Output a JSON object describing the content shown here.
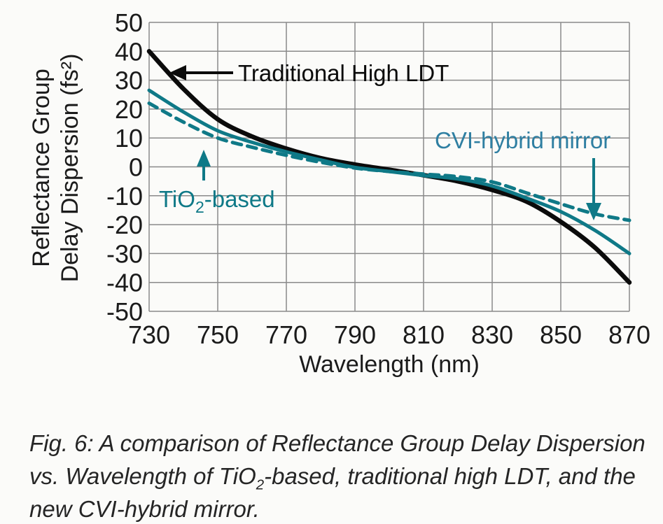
{
  "chart_data": {
    "type": "line",
    "title": "",
    "xlabel": "Wavelength (nm)",
    "ylabel": "Reflectance Group Delay Dispersion (fs²)",
    "ylabel_lines": [
      "Reflectance Group",
      "Delay Dispersion (fs²)"
    ],
    "xlim": [
      730,
      870
    ],
    "ylim": [
      -50,
      50
    ],
    "x_ticks": [
      730,
      750,
      770,
      790,
      810,
      830,
      850,
      870
    ],
    "y_ticks": [
      50,
      40,
      30,
      20,
      10,
      0,
      -10,
      -20,
      -30,
      -40,
      -50
    ],
    "grid": true,
    "grid_color": "#8a8a8a",
    "legend_position": "inline-annotations",
    "x": [
      730,
      740,
      750,
      760,
      770,
      780,
      790,
      800,
      810,
      820,
      830,
      840,
      850,
      860,
      870
    ],
    "series": [
      {
        "name": "Traditional High LDT",
        "color": "#0b0b0b",
        "style": "solid",
        "width": 6.5,
        "values": [
          40,
          27,
          16.5,
          10.5,
          6.3,
          3,
          0.8,
          -1,
          -2.9,
          -5,
          -8,
          -12,
          -19,
          -28,
          -40
        ]
      },
      {
        "name": "TiO2-based",
        "color": "#0f7987",
        "style": "solid",
        "width": 5,
        "values": [
          26.5,
          19,
          12.5,
          8.5,
          5.2,
          2.4,
          -0.2,
          -1.6,
          -3,
          -4.2,
          -6.6,
          -10.8,
          -15.5,
          -22,
          -30
        ]
      },
      {
        "name": "CVI-hybrid mirror",
        "color": "#0f7987",
        "style": "dashed",
        "width": 5,
        "values": [
          22,
          15.5,
          10,
          6.8,
          4,
          1.6,
          -0.4,
          -1.6,
          -2.5,
          -3.4,
          -5.2,
          -9,
          -12.8,
          -16.3,
          -18.5
        ]
      }
    ]
  },
  "annotations": {
    "traditional": {
      "label": "Traditional High LDT",
      "color": "#0b0b0b"
    },
    "tio2": {
      "prefix": "TiO",
      "sub": "2",
      "suffix": "-based",
      "color": "#0f7987"
    },
    "cvi": {
      "label": "CVI-hybrid mirror",
      "color": "#2f7fa2"
    }
  },
  "caption": {
    "line1": "Fig. 6: A comparison of Reflectance Group Delay Dispersion",
    "line2_prefix": "vs. Wavelength of TiO",
    "line2_sub": "2",
    "line2_suffix": "-based, traditional high LDT, and the",
    "line3": "new CVI-hybrid mirror."
  }
}
